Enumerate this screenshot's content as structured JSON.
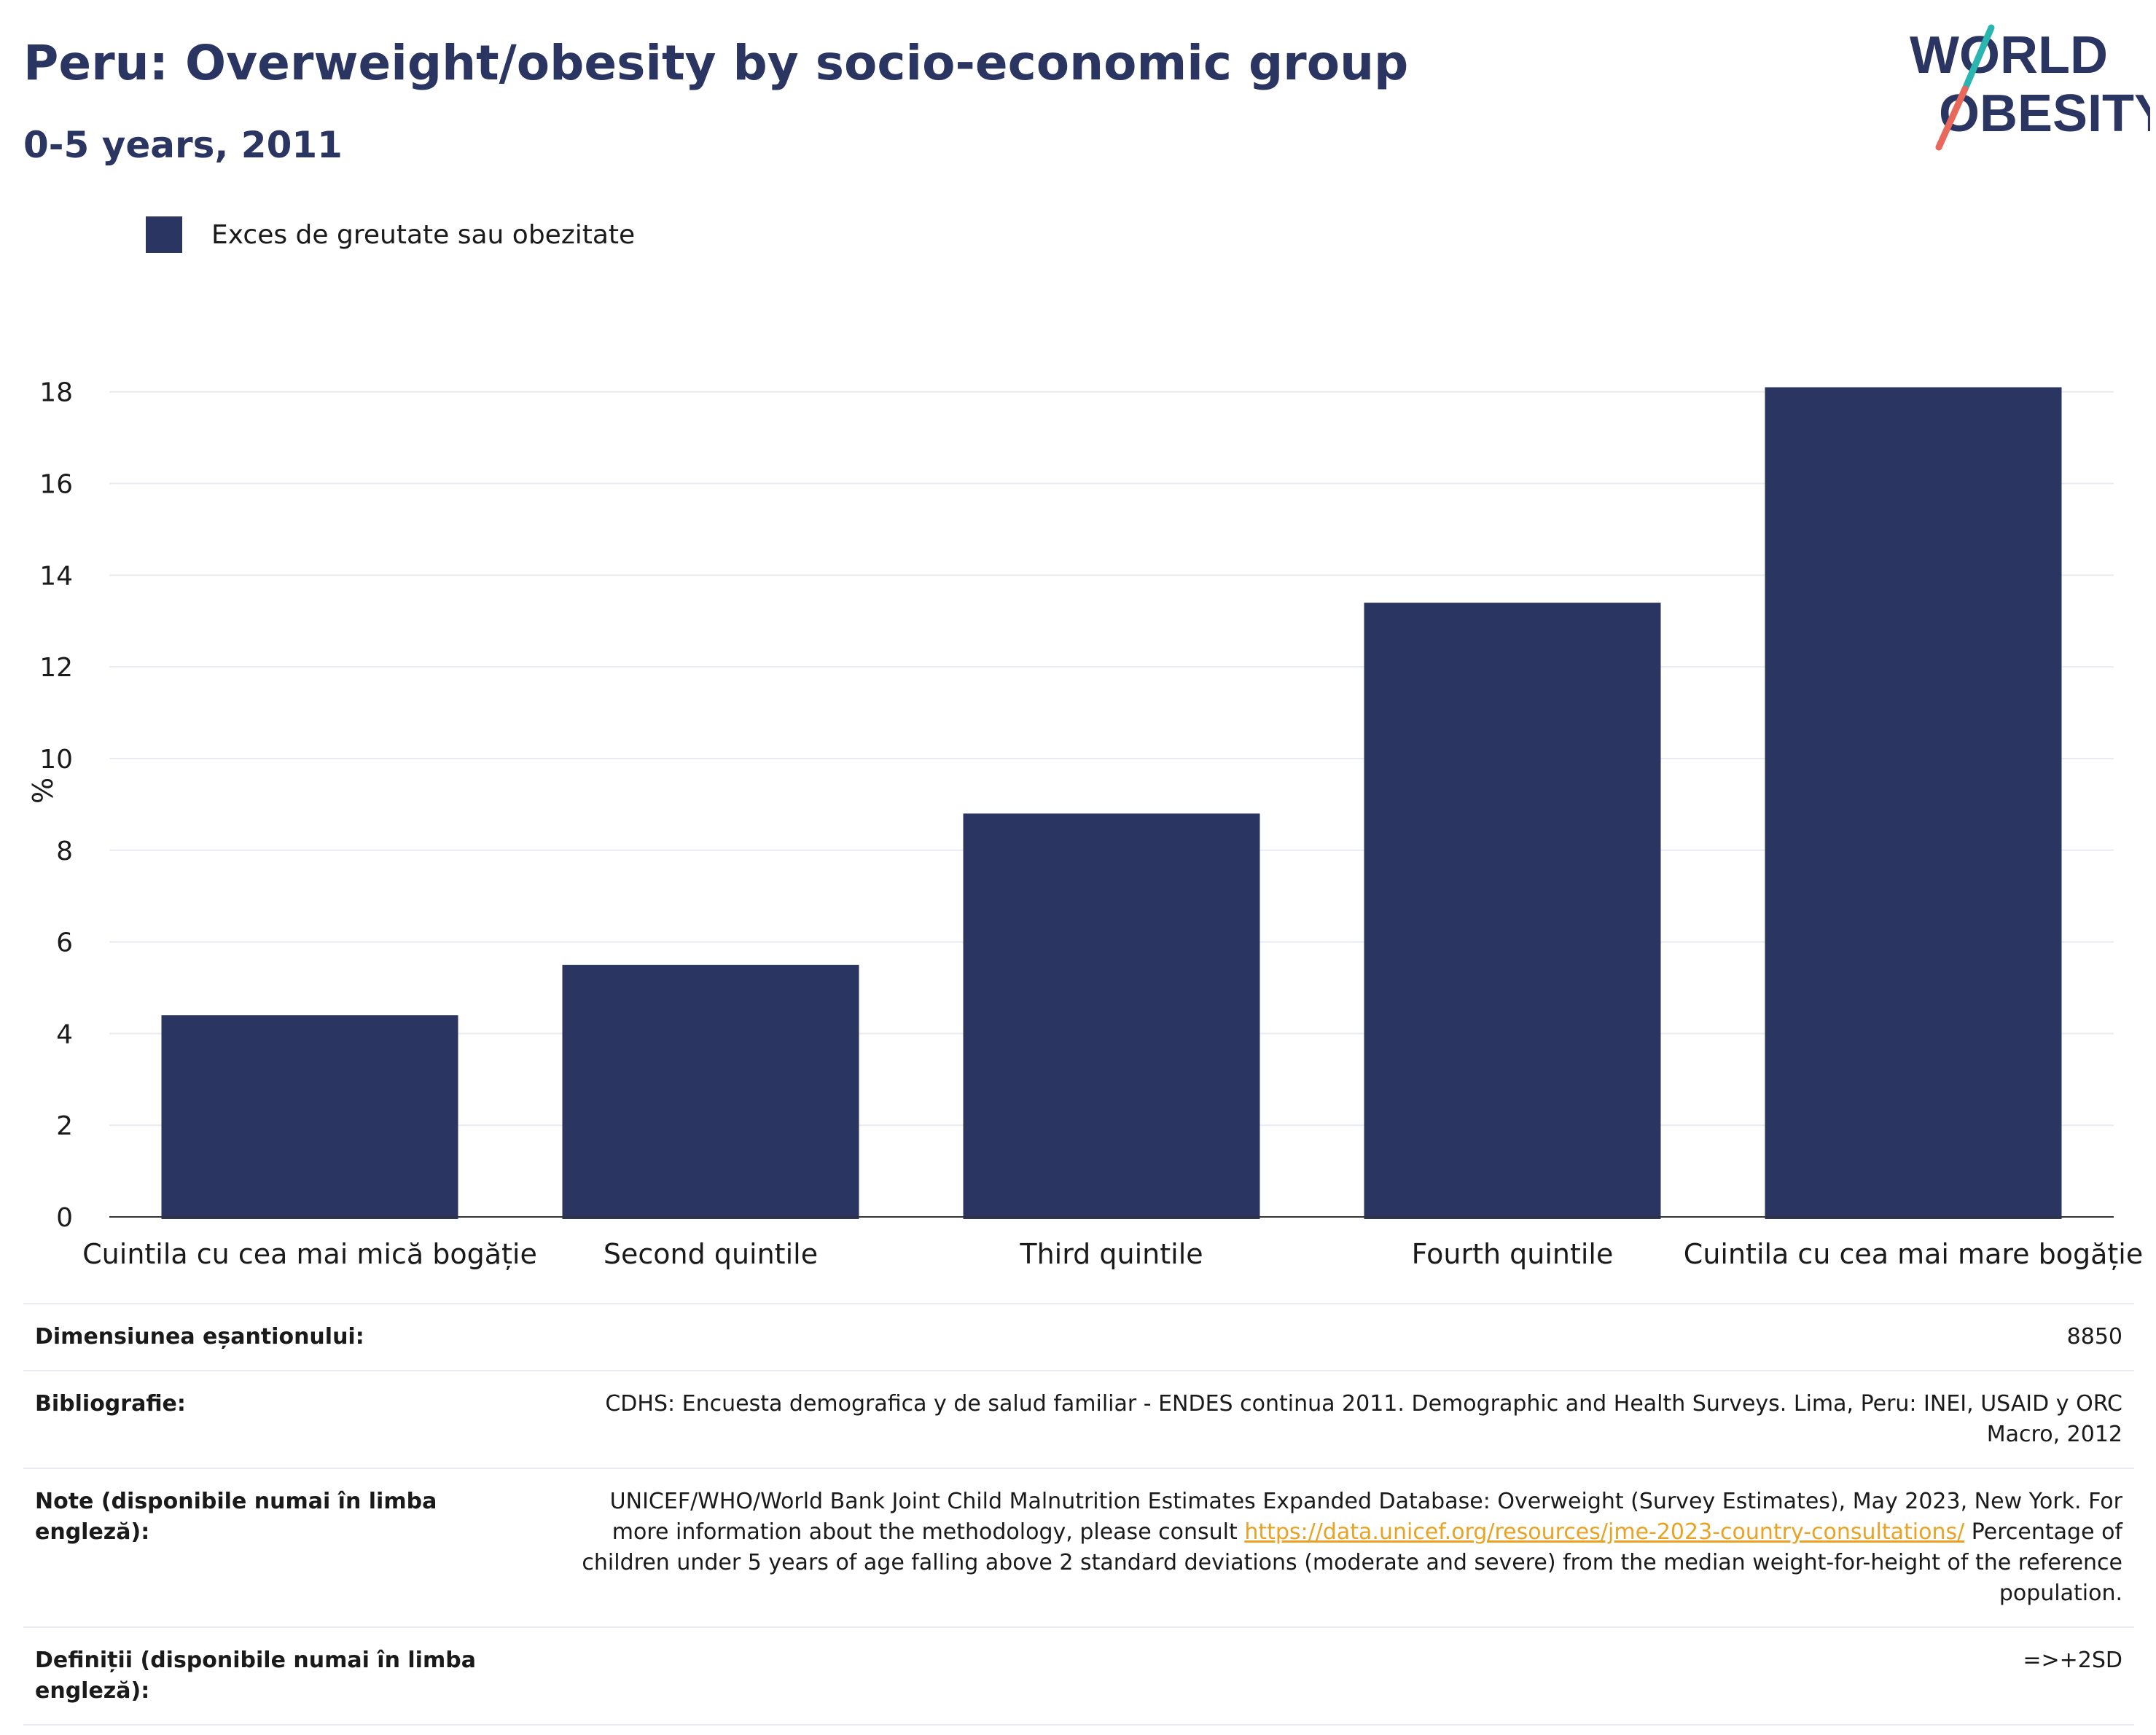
{
  "header": {
    "title": "Peru: Overweight/obesity by socio-economic group",
    "subtitle": "0-5 years, 2011"
  },
  "logo": {
    "line1": "WORLD",
    "line2": "OBESITY",
    "colors": {
      "text": "#2a3561",
      "slash_top": "#2bb5b0",
      "slash_bottom": "#e8685c"
    }
  },
  "legend": {
    "label": "Exces de greutate sau obezitate",
    "color": "#2a3561"
  },
  "chart_data": {
    "type": "bar",
    "categories": [
      "Cuintila cu cea mai mică bogăție",
      "Second quintile",
      "Third quintile",
      "Fourth quintile",
      "Cuintila cu cea mai mare bogăție"
    ],
    "series": [
      {
        "name": "Exces de greutate sau obezitate",
        "values": [
          4.4,
          5.5,
          8.8,
          13.4,
          18.1
        ],
        "color": "#2a3561"
      }
    ],
    "ylabel": "%",
    "xlabel": "",
    "ylim": [
      0,
      18.6
    ],
    "yticks": [
      0,
      2,
      4,
      6,
      8,
      10,
      12,
      14,
      16,
      18
    ],
    "grid": true,
    "legend_position": "top-left"
  },
  "info": {
    "sample_size": {
      "label": "Dimensiunea eșantionului:",
      "value": "8850"
    },
    "bibliography": {
      "label": "Bibliografie:",
      "value": "CDHS: Encuesta demografica y de salud familiar - ENDES continua 2011. Demographic and Health Surveys. Lima, Peru: INEI, USAID y ORC Macro, 2012"
    },
    "notes": {
      "label": "Note (disponibile numai în limba engleză):",
      "text_before": "UNICEF/WHO/World Bank Joint Child Malnutrition Estimates Expanded Database: Overweight (Survey Estimates), May 2023, New York. For more information about the methodology, please consult ",
      "link": "https://data.unicef.org/resources/jme-2023-country-consultations/",
      "text_after": " Percentage of children under 5 years of age falling above 2 standard deviations (moderate and severe) from the median weight-for-height of the reference population."
    },
    "definitions": {
      "label": "Definiții (disponibile numai în limba engleză):",
      "value": "=>+2SD"
    }
  }
}
